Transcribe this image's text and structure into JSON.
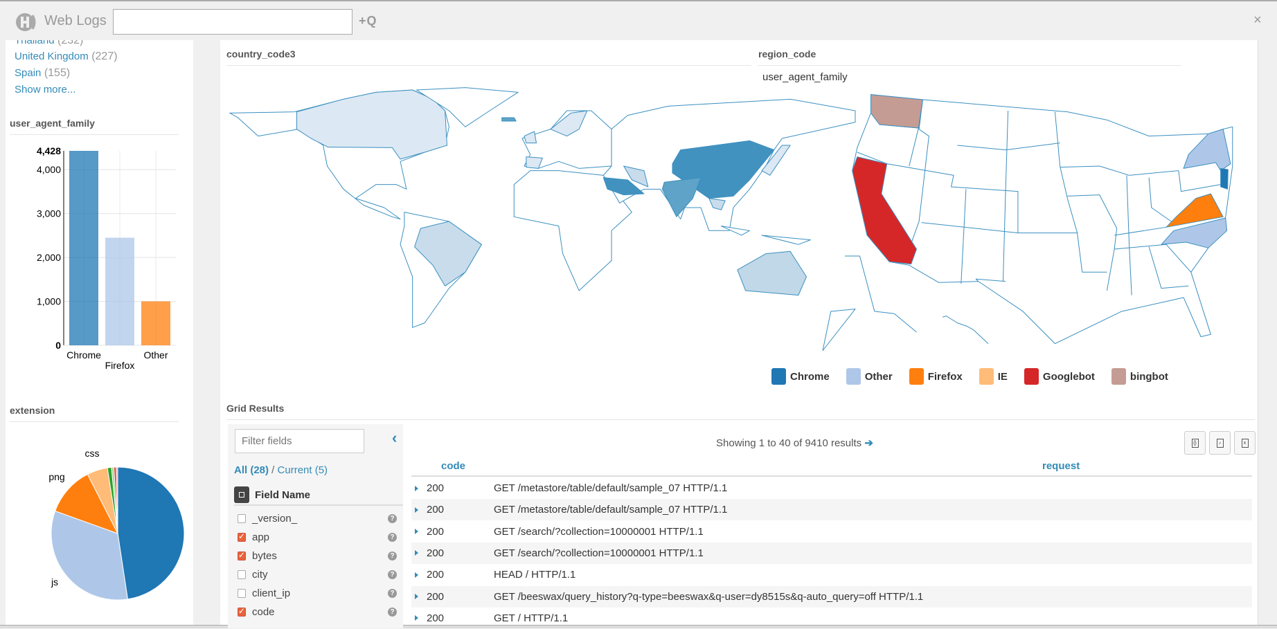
{
  "header": {
    "app_title": "Web Logs",
    "search_value": "",
    "add_query_label": "+Q",
    "close_label": "×"
  },
  "left_panel": {
    "country_facets": [
      {
        "label": "Thailand",
        "count": "(232)"
      },
      {
        "label": "United Kingdom",
        "count": "(227)"
      },
      {
        "label": "Spain",
        "count": "(155)"
      }
    ],
    "show_more": "Show more..."
  },
  "colors": {
    "chrome": "#1f77b4",
    "other": "#aec7e8",
    "firefox": "#ff7f0e",
    "ie": "#ffbb78",
    "googlebot": "#d62728",
    "bingbot": "#c49c94",
    "link": "#338bb8"
  },
  "maps": {
    "country_title": "country_code3",
    "region_title": "region_code",
    "region_subtitle": "user_agent_family",
    "legend": [
      {
        "label": "Chrome",
        "color": "#1f77b4"
      },
      {
        "label": "Other",
        "color": "#aec7e8"
      },
      {
        "label": "Firefox",
        "color": "#ff7f0e"
      },
      {
        "label": "IE",
        "color": "#ffbb78"
      },
      {
        "label": "Googlebot",
        "color": "#d62728"
      },
      {
        "label": "bingbot",
        "color": "#c49c94"
      }
    ],
    "us_states_highlighted": [
      {
        "state": "WA",
        "family": "bingbot"
      },
      {
        "state": "CA",
        "family": "Googlebot"
      },
      {
        "state": "VA",
        "family": "Firefox"
      },
      {
        "state": "NY",
        "family": "Other"
      },
      {
        "state": "NC",
        "family": "Other"
      },
      {
        "state": "NJ",
        "family": "Chrome"
      }
    ]
  },
  "chart_data": [
    {
      "type": "bar",
      "title": "user_agent_family",
      "categories": [
        "Chrome",
        "Firefox",
        "Other"
      ],
      "values": [
        4428,
        2450,
        1000
      ],
      "colors": [
        "#1f77b4",
        "#aec7e8",
        "#ff7f0e"
      ],
      "yticks": [
        "0",
        "1,000",
        "2,000",
        "3,000",
        "4,000",
        "4,428"
      ],
      "ylim": [
        0,
        4428
      ],
      "grid": true
    },
    {
      "type": "pie",
      "title": "extension",
      "slices": [
        {
          "label": "",
          "value": 47.6,
          "color": "#1f77b4"
        },
        {
          "label": "js",
          "value": 32.9,
          "color": "#aec7e8"
        },
        {
          "label": "png",
          "value": 12.0,
          "color": "#ff7f0e"
        },
        {
          "label": "css",
          "value": 5.0,
          "color": "#ffbb78"
        },
        {
          "label": "",
          "value": 1.0,
          "color": "#2ca02c"
        },
        {
          "label": "",
          "value": 0.6,
          "color": "#98df8a"
        },
        {
          "label": "",
          "value": 0.5,
          "color": "#d62728"
        },
        {
          "label": "",
          "value": 0.4,
          "color": "#ff9896"
        }
      ]
    }
  ],
  "grid": {
    "title": "Grid Results",
    "filter_placeholder": "Filter fields",
    "all_label": "All (28)",
    "separator": " / ",
    "current_label": "Current (5)",
    "field_name_header": "Field Name",
    "fields": [
      {
        "name": "_version_",
        "checked": false
      },
      {
        "name": "app",
        "checked": true
      },
      {
        "name": "bytes",
        "checked": true
      },
      {
        "name": "city",
        "checked": false
      },
      {
        "name": "client_ip",
        "checked": false
      },
      {
        "name": "code",
        "checked": true
      }
    ],
    "showing": "Showing 1 to 40 of 9410 results",
    "export_buttons": [
      "csv",
      "pdf",
      "xls"
    ],
    "columns": [
      "code",
      "request"
    ],
    "rows": [
      {
        "code": "200",
        "request": "GET /metastore/table/default/sample_07 HTTP/1.1"
      },
      {
        "code": "200",
        "request": "GET /metastore/table/default/sample_07 HTTP/1.1"
      },
      {
        "code": "200",
        "request": "GET /search/?collection=10000001 HTTP/1.1"
      },
      {
        "code": "200",
        "request": "GET /search/?collection=10000001 HTTP/1.1"
      },
      {
        "code": "200",
        "request": "HEAD / HTTP/1.1"
      },
      {
        "code": "200",
        "request": "GET /beeswax/query_history?q-type=beeswax&q-user=dy8515s&q-auto_query=off HTTP/1.1"
      },
      {
        "code": "200",
        "request": "GET / HTTP/1.1"
      }
    ]
  }
}
